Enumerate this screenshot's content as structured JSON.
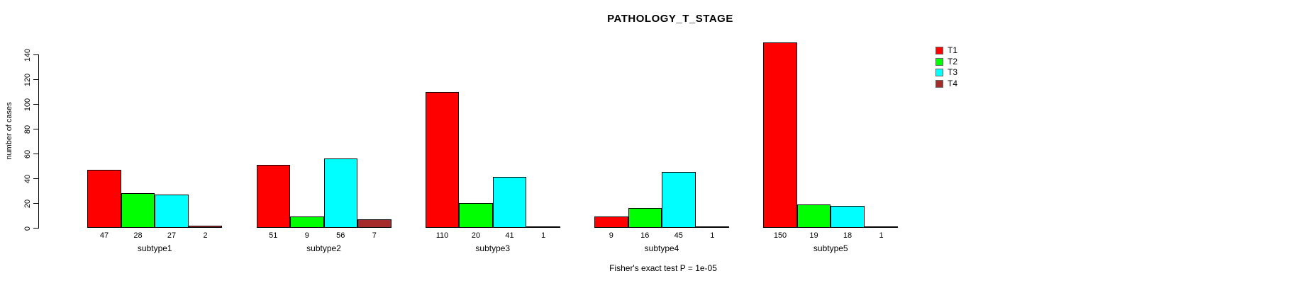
{
  "chart_data": {
    "type": "bar",
    "title": "PATHOLOGY_T_STAGE",
    "ylabel": "number of cases",
    "xlabel": "",
    "categories": [
      "subtype1",
      "subtype2",
      "subtype3",
      "subtype4",
      "subtype5"
    ],
    "series": [
      {
        "name": "T1",
        "color": "#FF0000",
        "values": [
          47,
          51,
          110,
          9,
          150
        ]
      },
      {
        "name": "T2",
        "color": "#00FF00",
        "values": [
          28,
          9,
          20,
          16,
          19
        ]
      },
      {
        "name": "T3",
        "color": "#00FFFF",
        "values": [
          27,
          56,
          41,
          45,
          18
        ]
      },
      {
        "name": "T4",
        "color": "#A52A2A",
        "values": [
          2,
          7,
          1,
          1,
          1
        ]
      }
    ],
    "bar_value_labels": [
      [
        47,
        28,
        27,
        2
      ],
      [
        51,
        9,
        56,
        7
      ],
      [
        110,
        20,
        41,
        1
      ],
      [
        9,
        16,
        45,
        1
      ],
      [
        150,
        19,
        18,
        1
      ]
    ],
    "yticks": [
      0,
      20,
      40,
      60,
      80,
      100,
      120,
      140
    ],
    "ylim": [
      0,
      140
    ],
    "grid": false,
    "legend_position": "right",
    "annotation": "Fisher's exact test P = 1e-05"
  }
}
